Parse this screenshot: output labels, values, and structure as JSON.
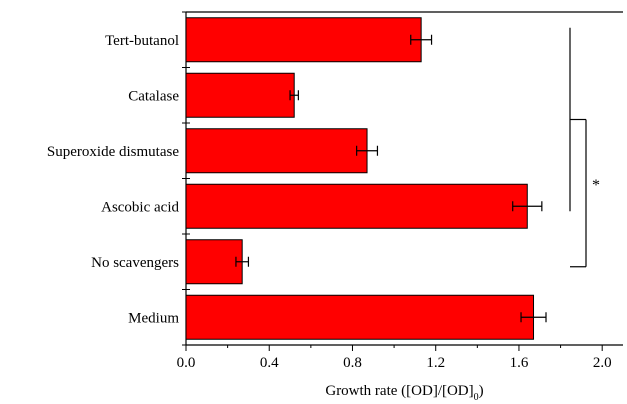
{
  "chart_data": {
    "type": "bar",
    "orientation": "horizontal",
    "categories": [
      "Tert-butanol",
      "Catalase",
      "Superoxide dismutase",
      "Ascobic acid",
      "No scavengers",
      "Medium"
    ],
    "values": [
      1.13,
      0.52,
      0.87,
      1.64,
      0.27,
      1.67
    ],
    "errors": [
      0.05,
      0.02,
      0.05,
      0.07,
      0.03,
      0.06
    ],
    "bar_color": "#ff0000",
    "xlabel": "Growth rate ([OD]/[OD]",
    "xlabel_subscript": "0",
    "xlabel_tail": ")",
    "xlim": [
      0.0,
      2.1
    ],
    "xticks": [
      "0.0",
      "0.4",
      "0.8",
      "1.2",
      "1.6",
      "2.0"
    ],
    "xtick_values": [
      0.0,
      0.4,
      0.8,
      1.2,
      1.6,
      2.0
    ],
    "grid": false,
    "significance": {
      "label": "*",
      "groups": [
        [
          "Tert-butanol",
          "Catalase",
          "Superoxide dismutase",
          "Ascobic acid"
        ],
        [
          "No scavengers"
        ]
      ]
    }
  }
}
